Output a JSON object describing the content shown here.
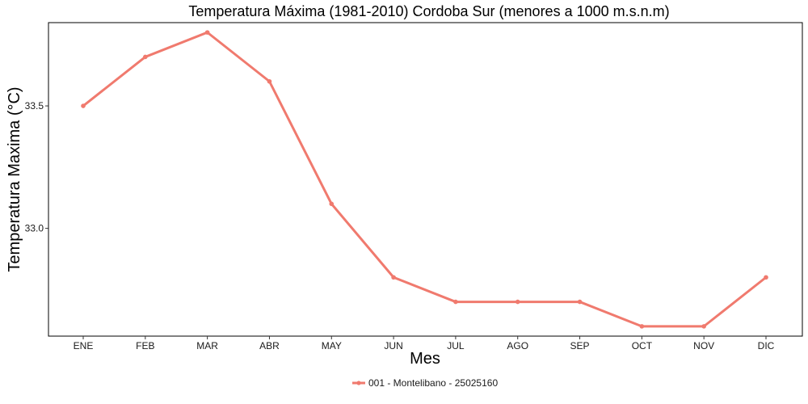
{
  "chart_data": {
    "type": "line",
    "title": "Temperatura Máxima (1981-2010) Cordoba Sur (menores a 1000 m.s.n.m)",
    "xlabel": "Mes",
    "ylabel": "Temperatura Maxima (°C)",
    "categories": [
      "ENE",
      "FEB",
      "MAR",
      "ABR",
      "MAY",
      "JUN",
      "JUL",
      "AGO",
      "SEP",
      "OCT",
      "NOV",
      "DIC"
    ],
    "y_ticks": [
      33.0,
      33.5
    ],
    "ylim": [
      32.56,
      33.84
    ],
    "grid": false,
    "legend_position": "bottom",
    "series": [
      {
        "name": "001 - Montelibano - 25025160",
        "color": "#f07a6e",
        "values": [
          33.5,
          33.7,
          33.8,
          33.6,
          33.1,
          32.8,
          32.7,
          32.7,
          32.7,
          32.6,
          32.6,
          32.8
        ]
      }
    ]
  }
}
